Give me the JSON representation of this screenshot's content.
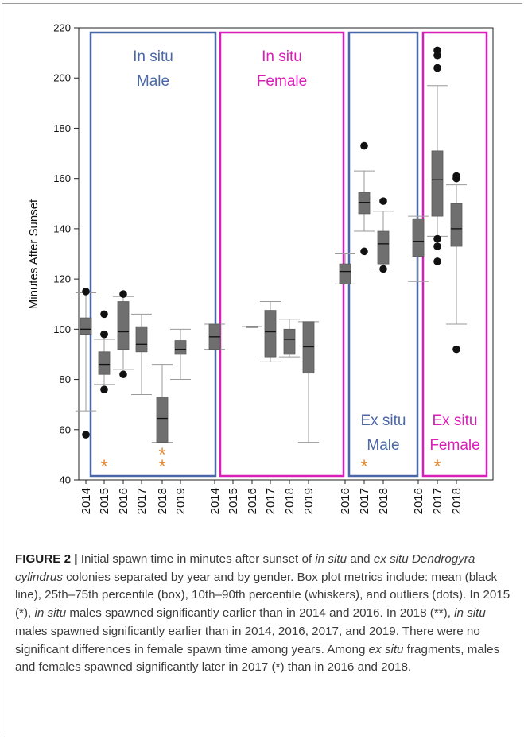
{
  "chart_data": {
    "type": "boxplot",
    "ylabel": "Minutes After Sunset",
    "ylim": [
      40,
      220
    ],
    "yticks": [
      40,
      60,
      80,
      100,
      120,
      140,
      160,
      180,
      200,
      220
    ],
    "box_stats_order": [
      "p10",
      "q1",
      "mean",
      "q3",
      "p90"
    ],
    "colors": {
      "in_situ_male": "#4a67a8",
      "in_situ_female": "#d81fb8",
      "ex_situ_male": "#4a67a8",
      "ex_situ_female": "#d81fb8",
      "box": "#6f6f6f",
      "asterisk": "#e58a35"
    },
    "panels": [
      {
        "label_lines": [
          "In situ",
          "Male"
        ],
        "label_position": "top",
        "color": "#4a67a8",
        "groups": [
          {
            "year": "2014",
            "stats": [
              67.5,
              98,
              100,
              104.5,
              114.5
            ],
            "outliers": [
              115,
              58
            ]
          },
          {
            "year": "2015",
            "stats": [
              78,
              82,
              86,
              91,
              96
            ],
            "outliers": [
              106,
              98,
              98,
              76
            ],
            "significance": "*"
          },
          {
            "year": "2016",
            "stats": [
              84,
              92,
              99,
              111,
              113
            ],
            "outliers": [
              114,
              82
            ]
          },
          {
            "year": "2017",
            "stats": [
              74,
              91,
              94,
              101,
              106
            ],
            "outliers": []
          },
          {
            "year": "2018",
            "stats": [
              55,
              55,
              64.5,
              73,
              86
            ],
            "outliers": [],
            "significance": "**"
          },
          {
            "year": "2019",
            "stats": [
              80,
              90,
              92,
              95.5,
              100
            ],
            "outliers": []
          }
        ]
      },
      {
        "label_lines": [
          "In situ",
          "Female"
        ],
        "label_position": "top",
        "color": "#d81fb8",
        "groups": [
          {
            "year": "2014",
            "stats": [
              92,
              92,
              97,
              102,
              102
            ],
            "outliers": []
          },
          {
            "year": "2015",
            "stats": null,
            "outliers": []
          },
          {
            "year": "2016",
            "stats": [
              101,
              101,
              101,
              101,
              101
            ],
            "outliers": []
          },
          {
            "year": "2017",
            "stats": [
              87,
              89,
              99,
              107.5,
              111
            ],
            "outliers": []
          },
          {
            "year": "2018",
            "stats": [
              89,
              90,
              96,
              100,
              104
            ],
            "outliers": []
          },
          {
            "year": "2019",
            "stats": [
              55,
              82.5,
              93,
              103,
              103
            ],
            "outliers": []
          }
        ]
      },
      {
        "label_lines": [
          "Ex situ",
          "Male"
        ],
        "label_position": "bottom",
        "color": "#4a67a8",
        "groups": [
          {
            "year": "2016",
            "stats": [
              118,
              118,
              123,
              126,
              130
            ],
            "outliers": []
          },
          {
            "year": "2017",
            "stats": [
              139,
              146,
              150.5,
              154.5,
              163
            ],
            "outliers": [
              173,
              131
            ],
            "significance": "*"
          },
          {
            "year": "2018",
            "stats": [
              124,
              126,
              134,
              139,
              147
            ],
            "outliers": [
              151,
              124
            ]
          }
        ]
      },
      {
        "label_lines": [
          "Ex situ",
          "Female"
        ],
        "label_position": "bottom",
        "color": "#d81fb8",
        "groups": [
          {
            "year": "2016",
            "stats": [
              119,
              129,
              135,
              144,
              145
            ],
            "outliers": []
          },
          {
            "year": "2017",
            "stats": [
              137,
              145,
              159.5,
              171,
              197
            ],
            "outliers": [
              211,
              209,
              204,
              136,
              133,
              127
            ],
            "significance": "*"
          },
          {
            "year": "2018",
            "stats": [
              102,
              133,
              140,
              150,
              157.5
            ],
            "outliers": [
              161,
              160,
              92
            ]
          }
        ]
      }
    ]
  },
  "caption": {
    "label": "FIGURE 2 |",
    "parts": [
      {
        "t": " Initial spawn time in minutes after sunset of "
      },
      {
        "t": "in situ",
        "i": true
      },
      {
        "t": " and "
      },
      {
        "t": "ex situ",
        "i": true
      },
      {
        "t": " "
      },
      {
        "t": "Dendrogyra cylindrus",
        "i": true
      },
      {
        "t": " colonies separated by year and by gender. Box plot metrics include: mean (black line), 25th–75th percentile (box), 10th–90th percentile (whiskers), and outliers (dots). In 2015 (*), "
      },
      {
        "t": "in situ",
        "i": true
      },
      {
        "t": " males spawned significantly earlier than in 2014 and 2016. In 2018 (**), "
      },
      {
        "t": "in situ",
        "i": true
      },
      {
        "t": " males spawned significantly earlier than in 2014, 2016, 2017, and 2019. There were no significant differences in female spawn time among years. Among "
      },
      {
        "t": "ex situ",
        "i": true
      },
      {
        "t": " fragments, males and females spawned significantly later in 2017 (*) than in 2016 and 2018."
      }
    ]
  }
}
